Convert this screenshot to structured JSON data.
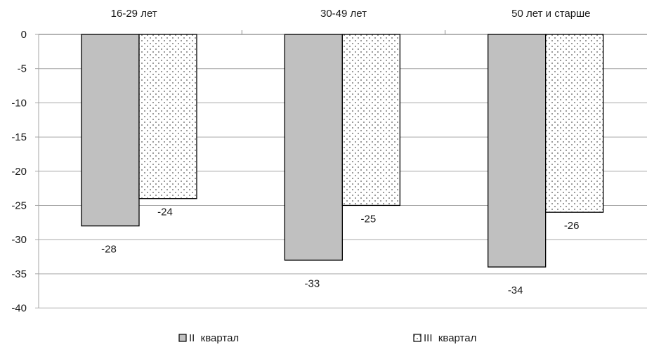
{
  "chart_data": {
    "type": "bar",
    "categories": [
      "16-29 лет",
      "30-49 лет",
      "50 лет и старше"
    ],
    "series": [
      {
        "name": "II  квартал",
        "values": [
          -28,
          -33,
          -34
        ],
        "fill": "#c0c0c0",
        "pattern": "solid"
      },
      {
        "name": "III  квартал",
        "values": [
          -24,
          -25,
          -26
        ],
        "fill": "#ffffff",
        "pattern": "dotted"
      }
    ],
    "data_labels": [
      "-28",
      "-24",
      "-33",
      "-25",
      "-34",
      "-26"
    ],
    "y_ticks": [
      "0",
      "-5",
      "-10",
      "-15",
      "-20",
      "-25",
      "-30",
      "-35",
      "-40"
    ],
    "ylim": [
      -40,
      0
    ],
    "category_axis_position": "top",
    "grid": true,
    "legend_position": "bottom",
    "colors": {
      "grid": "#a6a6a6",
      "bar_stroke": "#000000",
      "text": "#1a1a1a",
      "dot": "#555555"
    }
  }
}
